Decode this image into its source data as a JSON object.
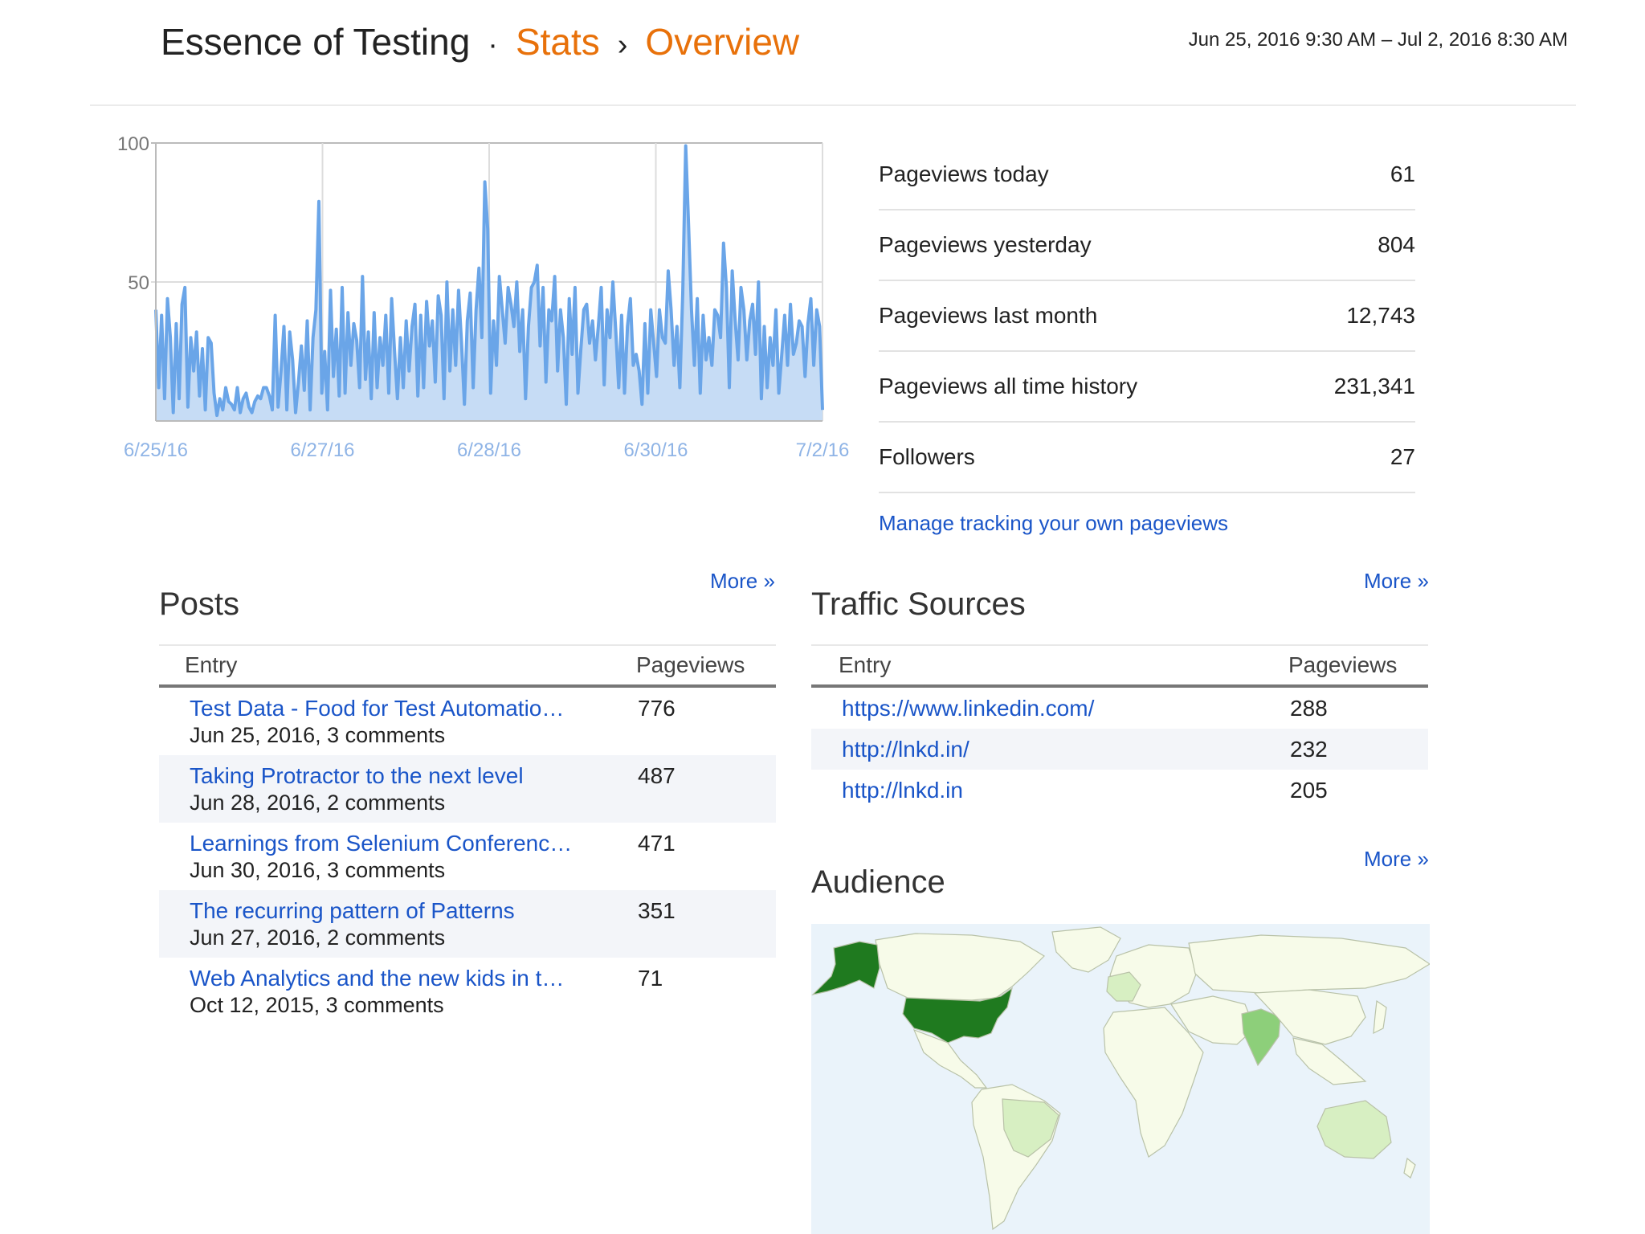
{
  "header": {
    "blog_name": "Essence of Testing",
    "separator_dot": "·",
    "section": "Stats",
    "chevron": "›",
    "page": "Overview",
    "date_range": "Jun 25, 2016 9:30 AM – Jul 2, 2016 8:30 AM"
  },
  "chart_data": {
    "type": "area",
    "x_tick_labels": [
      "6/25/16",
      "6/27/16",
      "6/28/16",
      "6/30/16",
      "7/2/16"
    ],
    "y_tick_labels": [
      "100",
      "50"
    ],
    "ylim": [
      0,
      100
    ],
    "grid": true,
    "color": "#6aa5e8",
    "fill": "#c6dcf5",
    "values": [
      40,
      12,
      38,
      8,
      44,
      30,
      3,
      35,
      8,
      42,
      48,
      5,
      30,
      18,
      32,
      9,
      26,
      4,
      30,
      28,
      10,
      2,
      8,
      4,
      12,
      7,
      6,
      4,
      12,
      3,
      8,
      10,
      5,
      3,
      7,
      9,
      8,
      12,
      12,
      9,
      4,
      38,
      5,
      18,
      34,
      4,
      32,
      22,
      3,
      14,
      27,
      11,
      36,
      4,
      30,
      40,
      79,
      10,
      25,
      4,
      47,
      16,
      33,
      9,
      48,
      10,
      39,
      20,
      35,
      29,
      12,
      52,
      15,
      32,
      8,
      39,
      12,
      30,
      20,
      38,
      10,
      44,
      25,
      8,
      30,
      12,
      36,
      18,
      34,
      42,
      9,
      38,
      12,
      43,
      27,
      36,
      14,
      45,
      38,
      8,
      50,
      18,
      40,
      20,
      47,
      28,
      6,
      36,
      46,
      12,
      40,
      55,
      30,
      86,
      69,
      10,
      36,
      20,
      52,
      40,
      28,
      48,
      42,
      34,
      50,
      25,
      40,
      8,
      34,
      48,
      50,
      56,
      27,
      48,
      14,
      40,
      36,
      52,
      18,
      40,
      30,
      6,
      44,
      24,
      48,
      10,
      26,
      40,
      42,
      28,
      36,
      22,
      34,
      48,
      13,
      40,
      30,
      50,
      32,
      12,
      38,
      10,
      34,
      44,
      20,
      24,
      18,
      6,
      35,
      10,
      40,
      28,
      16,
      40,
      30,
      28,
      54,
      40,
      20,
      34,
      12,
      46,
      99,
      70,
      40,
      20,
      44,
      10,
      38,
      22,
      30,
      20,
      40,
      38,
      30,
      64,
      48,
      12,
      54,
      36,
      22,
      48,
      40,
      22,
      36,
      42,
      24,
      50,
      8,
      34,
      12,
      30,
      20,
      40,
      10,
      24,
      38,
      20,
      42,
      24,
      28,
      36,
      34,
      16,
      35,
      44,
      20,
      40,
      34,
      4
    ]
  },
  "summary": [
    {
      "label": "Pageviews today",
      "value": "61"
    },
    {
      "label": "Pageviews yesterday",
      "value": "804"
    },
    {
      "label": "Pageviews last month",
      "value": "12,743"
    },
    {
      "label": "Pageviews all time history",
      "value": "231,341"
    },
    {
      "label": "Followers",
      "value": "27"
    }
  ],
  "manage_link": "Manage tracking your own pageviews",
  "posts": {
    "title": "Posts",
    "more": "More »",
    "col_entry": "Entry",
    "col_views": "Pageviews",
    "rows": [
      {
        "title": "Test Data - Food for Test Automatio…",
        "meta": "Jun 25, 2016, 3 comments",
        "views": "776"
      },
      {
        "title": "Taking Protractor to the next level",
        "meta": "Jun 28, 2016, 2 comments",
        "views": "487"
      },
      {
        "title": "Learnings from Selenium Conferenc…",
        "meta": "Jun 30, 2016, 3 comments",
        "views": "471"
      },
      {
        "title": "The recurring pattern of Patterns",
        "meta": "Jun 27, 2016, 2 comments",
        "views": "351"
      },
      {
        "title": "Web Analytics and the new kids in t…",
        "meta": "Oct 12, 2015, 3 comments",
        "views": "71"
      }
    ]
  },
  "traffic": {
    "title": "Traffic Sources",
    "more": "More »",
    "col_entry": "Entry",
    "col_views": "Pageviews",
    "rows": [
      {
        "url": "https://www.linkedin.com/",
        "views": "288"
      },
      {
        "url": "http://lnkd.in/",
        "views": "232"
      },
      {
        "url": "http://lnkd.in",
        "views": "205"
      }
    ]
  },
  "audience": {
    "title": "Audience",
    "more": "More »",
    "colors": {
      "ocean": "#eaf3fa",
      "land": "#f7fbe9",
      "low": "#d7efc2",
      "mid": "#8dcf7a",
      "high": "#1f7a1f"
    }
  }
}
